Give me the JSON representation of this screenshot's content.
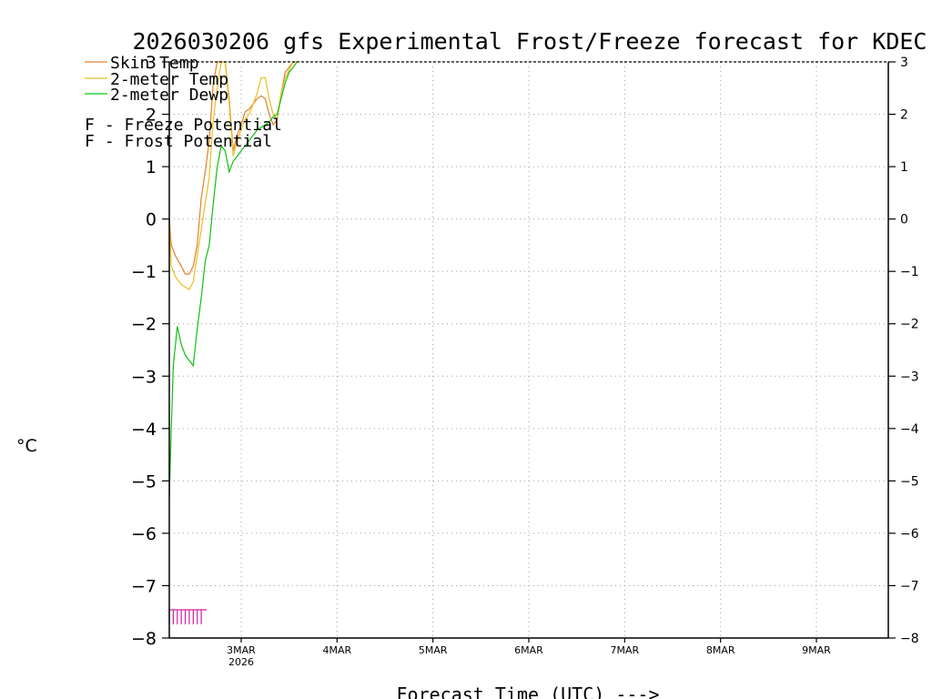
{
  "chart_data": {
    "type": "line",
    "title": "2026030206 gfs Experimental Frost/Freeze forecast for KDEC",
    "ylabel": "°C",
    "xlabel": "Forecast Time (UTC) --->",
    "ylim": [
      -8,
      3
    ],
    "xlim_hours": [
      0,
      180
    ],
    "y_ticks": [
      "-8",
      "-7",
      "-6",
      "-5",
      "-4",
      "-3",
      "-2",
      "-1",
      "0",
      "1",
      "2",
      "3"
    ],
    "date_ticks": [
      {
        "label": "3MAR",
        "hours": 18,
        "sub": "2026"
      },
      {
        "label": "4MAR",
        "hours": 42
      },
      {
        "label": "5MAR",
        "hours": 66
      },
      {
        "label": "6MAR",
        "hours": 90
      },
      {
        "label": "7MAR",
        "hours": 114
      },
      {
        "label": "8MAR",
        "hours": 138
      },
      {
        "label": "9MAR",
        "hours": 162
      }
    ],
    "grid": true,
    "legend": [
      {
        "label": "Skin Temp",
        "color": "#e08030"
      },
      {
        "label": "2-meter Temp",
        "color": "#e8c020"
      },
      {
        "label": "2-meter Dewp",
        "color": "#10c010"
      }
    ],
    "potential_legend": [
      {
        "marker": "F",
        "label": " - Freeze Potential",
        "color": "#d020a0"
      },
      {
        "marker": "F",
        "label": " - Frost Potential",
        "color": "#4040e0"
      }
    ],
    "series": [
      {
        "name": "Skin Temp",
        "color": "#e08030",
        "x": [
          0,
          0.5,
          1.5,
          3,
          4,
          5,
          6,
          7,
          8,
          9,
          10,
          11,
          12,
          13,
          14,
          15,
          16,
          17,
          18,
          19,
          20,
          21,
          22,
          23,
          24,
          25,
          26,
          27,
          28,
          29,
          30,
          31,
          32
        ],
        "y": [
          0.0,
          -0.5,
          -0.7,
          -0.9,
          -1.05,
          -1.05,
          -0.9,
          -0.5,
          0.4,
          0.9,
          1.5,
          2.6,
          3.2,
          3.3,
          3.1,
          2.3,
          1.3,
          1.6,
          1.8,
          2.05,
          2.1,
          2.2,
          2.3,
          2.35,
          2.3,
          2.0,
          1.8,
          1.9,
          2.4,
          2.8,
          2.9,
          3.0,
          3.05
        ]
      },
      {
        "name": "2-meter Temp",
        "color": "#e8c020",
        "x": [
          0,
          0.5,
          1.5,
          3,
          4,
          5,
          6,
          7,
          8,
          9,
          10,
          11,
          12,
          13,
          14,
          15,
          16,
          17,
          18,
          19,
          20,
          21,
          22,
          23,
          24,
          25,
          26,
          27,
          28,
          29,
          30,
          31,
          32
        ],
        "y": [
          0.0,
          -0.9,
          -1.1,
          -1.25,
          -1.3,
          -1.35,
          -1.2,
          -0.7,
          -0.2,
          0.3,
          0.8,
          1.9,
          2.5,
          3.1,
          3.0,
          2.2,
          1.2,
          1.5,
          1.7,
          1.9,
          2.0,
          2.2,
          2.4,
          2.7,
          2.7,
          2.3,
          2.0,
          1.9,
          2.4,
          2.7,
          2.85,
          3.0,
          3.05
        ]
      },
      {
        "name": "2-meter Dewp",
        "color": "#10c010",
        "x": [
          0,
          0.5,
          1,
          2,
          3,
          4,
          5,
          6,
          7,
          8,
          9,
          10,
          11,
          12,
          13,
          14,
          15,
          16,
          17,
          18,
          19,
          20,
          21,
          22,
          23,
          24,
          25,
          26,
          27,
          28,
          29,
          30,
          31,
          32
        ],
        "y": [
          -5.3,
          -4.0,
          -2.8,
          -2.05,
          -2.4,
          -2.6,
          -2.7,
          -2.8,
          -2.1,
          -1.5,
          -0.8,
          -0.5,
          0.3,
          1.0,
          1.4,
          1.3,
          0.9,
          1.1,
          1.2,
          1.3,
          1.4,
          1.5,
          1.6,
          1.7,
          1.75,
          1.8,
          1.85,
          1.95,
          2.0,
          2.3,
          2.6,
          2.8,
          2.9,
          3.05
        ]
      }
    ],
    "freeze_potential": {
      "label": "F",
      "color": "#d020a0",
      "hours": [
        0,
        1,
        2,
        3,
        4,
        5,
        6,
        7,
        8
      ],
      "level": -7.6
    }
  }
}
